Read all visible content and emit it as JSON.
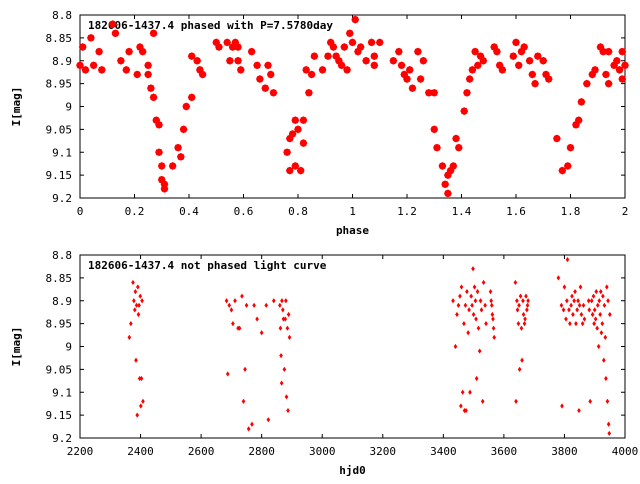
{
  "chart_data": [
    {
      "type": "scatter",
      "title": "182606-1437.4 phased with P=7.5780day",
      "xlabel": "phase",
      "ylabel": "I[mag]",
      "xlim": [
        0,
        2
      ],
      "ylim": [
        9.2,
        8.8
      ],
      "y_inverted": true,
      "grid": false,
      "marker": "star",
      "color": "#ff0000",
      "xticks": [
        "0",
        "0.2",
        "0.4",
        "0.6",
        "0.8",
        "1",
        "1.2",
        "1.4",
        "1.6",
        "1.8",
        "2"
      ],
      "yticks": [
        "8.8",
        "8.85",
        "8.9",
        "8.95",
        "9",
        "9.05",
        "9.1",
        "9.15",
        "9.2"
      ],
      "points": [
        [
          0.0,
          8.91
        ],
        [
          0.01,
          8.87
        ],
        [
          0.02,
          8.92
        ],
        [
          0.04,
          8.85
        ],
        [
          0.05,
          8.91
        ],
        [
          0.07,
          8.88
        ],
        [
          0.08,
          8.92
        ],
        [
          0.12,
          8.82
        ],
        [
          0.13,
          8.84
        ],
        [
          0.15,
          8.9
        ],
        [
          0.17,
          8.92
        ],
        [
          0.18,
          8.88
        ],
        [
          0.21,
          8.93
        ],
        [
          0.22,
          8.87
        ],
        [
          0.23,
          8.88
        ],
        [
          0.25,
          8.91
        ],
        [
          0.25,
          8.93
        ],
        [
          0.26,
          8.96
        ],
        [
          0.27,
          8.84
        ],
        [
          0.27,
          8.98
        ],
        [
          0.28,
          9.03
        ],
        [
          0.29,
          9.04
        ],
        [
          0.29,
          9.1
        ],
        [
          0.3,
          9.13
        ],
        [
          0.3,
          9.16
        ],
        [
          0.31,
          9.17
        ],
        [
          0.31,
          9.18
        ],
        [
          0.34,
          9.13
        ],
        [
          0.36,
          9.09
        ],
        [
          0.37,
          9.11
        ],
        [
          0.38,
          9.05
        ],
        [
          0.39,
          9.0
        ],
        [
          0.41,
          8.98
        ],
        [
          0.41,
          8.89
        ],
        [
          0.43,
          8.9
        ],
        [
          0.44,
          8.92
        ],
        [
          0.45,
          8.93
        ],
        [
          0.5,
          8.86
        ],
        [
          0.51,
          8.87
        ],
        [
          0.54,
          8.86
        ],
        [
          0.55,
          8.9
        ],
        [
          0.56,
          8.87
        ],
        [
          0.57,
          8.86
        ],
        [
          0.58,
          8.87
        ],
        [
          0.58,
          8.9
        ],
        [
          0.59,
          8.92
        ],
        [
          0.63,
          8.88
        ],
        [
          0.65,
          8.91
        ],
        [
          0.66,
          8.94
        ],
        [
          0.68,
          8.96
        ],
        [
          0.69,
          8.91
        ],
        [
          0.7,
          8.93
        ],
        [
          0.71,
          8.97
        ],
        [
          0.76,
          9.1
        ],
        [
          0.77,
          9.14
        ],
        [
          0.77,
          9.07
        ],
        [
          0.78,
          9.06
        ],
        [
          0.79,
          9.03
        ],
        [
          0.79,
          9.13
        ],
        [
          0.8,
          9.05
        ],
        [
          0.81,
          9.14
        ],
        [
          0.82,
          9.08
        ],
        [
          0.82,
          9.03
        ],
        [
          0.83,
          8.92
        ],
        [
          0.84,
          8.97
        ],
        [
          0.85,
          8.93
        ],
        [
          0.86,
          8.89
        ],
        [
          0.89,
          8.92
        ],
        [
          0.91,
          8.89
        ],
        [
          0.92,
          8.86
        ],
        [
          0.93,
          8.87
        ],
        [
          0.94,
          8.89
        ],
        [
          0.95,
          8.9
        ],
        [
          0.96,
          8.91
        ],
        [
          0.97,
          8.87
        ],
        [
          0.98,
          8.92
        ],
        [
          0.99,
          8.84
        ],
        [
          1.0,
          8.86
        ],
        [
          1.01,
          8.81
        ],
        [
          1.02,
          8.88
        ],
        [
          1.03,
          8.87
        ],
        [
          1.05,
          8.9
        ],
        [
          1.07,
          8.86
        ],
        [
          1.08,
          8.89
        ],
        [
          1.08,
          8.91
        ],
        [
          1.1,
          8.86
        ],
        [
          1.15,
          8.9
        ],
        [
          1.17,
          8.88
        ],
        [
          1.18,
          8.91
        ],
        [
          1.19,
          8.93
        ],
        [
          1.2,
          8.94
        ],
        [
          1.21,
          8.92
        ],
        [
          1.22,
          8.96
        ],
        [
          1.24,
          8.88
        ],
        [
          1.25,
          8.94
        ],
        [
          1.26,
          8.9
        ],
        [
          1.28,
          8.97
        ],
        [
          1.3,
          8.97
        ],
        [
          1.3,
          9.05
        ],
        [
          1.31,
          9.09
        ],
        [
          1.33,
          9.13
        ],
        [
          1.34,
          9.17
        ],
        [
          1.35,
          9.15
        ],
        [
          1.35,
          9.19
        ],
        [
          1.36,
          9.14
        ],
        [
          1.37,
          9.13
        ],
        [
          1.38,
          9.07
        ],
        [
          1.39,
          9.09
        ],
        [
          1.41,
          9.01
        ],
        [
          1.42,
          8.97
        ],
        [
          1.43,
          8.94
        ],
        [
          1.44,
          8.92
        ],
        [
          1.45,
          8.88
        ],
        [
          1.46,
          8.91
        ],
        [
          1.47,
          8.89
        ],
        [
          1.48,
          8.9
        ],
        [
          1.52,
          8.87
        ],
        [
          1.53,
          8.88
        ],
        [
          1.54,
          8.91
        ],
        [
          1.55,
          8.92
        ],
        [
          1.59,
          8.89
        ],
        [
          1.6,
          8.86
        ],
        [
          1.61,
          8.91
        ],
        [
          1.62,
          8.88
        ],
        [
          1.63,
          8.87
        ],
        [
          1.65,
          8.9
        ],
        [
          1.66,
          8.93
        ],
        [
          1.67,
          8.95
        ],
        [
          1.68,
          8.89
        ],
        [
          1.7,
          8.9
        ],
        [
          1.71,
          8.93
        ],
        [
          1.72,
          8.94
        ],
        [
          1.75,
          9.07
        ],
        [
          1.77,
          9.14
        ],
        [
          1.79,
          9.13
        ],
        [
          1.8,
          9.09
        ],
        [
          1.82,
          9.04
        ],
        [
          1.83,
          9.03
        ],
        [
          1.84,
          8.99
        ],
        [
          1.86,
          8.95
        ],
        [
          1.88,
          8.93
        ],
        [
          1.89,
          8.92
        ],
        [
          1.91,
          8.87
        ],
        [
          1.92,
          8.88
        ],
        [
          1.93,
          8.93
        ],
        [
          1.94,
          8.95
        ],
        [
          1.94,
          8.88
        ],
        [
          1.96,
          8.91
        ],
        [
          1.97,
          8.9
        ],
        [
          1.98,
          8.92
        ],
        [
          1.99,
          8.88
        ],
        [
          1.99,
          8.94
        ],
        [
          2.0,
          8.91
        ]
      ]
    },
    {
      "type": "scatter",
      "title": "182606-1437.4 not phased light curve",
      "xlabel": "hjd0",
      "ylabel": "I[mag]",
      "xlim": [
        2200,
        4000
      ],
      "ylim": [
        9.2,
        8.8
      ],
      "y_inverted": true,
      "grid": false,
      "marker": "diamond",
      "color": "#ff0000",
      "xticks": [
        "2200",
        "2400",
        "2600",
        "2800",
        "3000",
        "3200",
        "3400",
        "3600",
        "3800",
        "4000"
      ],
      "yticks": [
        "8.8",
        "8.85",
        "8.9",
        "8.95",
        "9",
        "9.05",
        "9.1",
        "9.15",
        "9.2"
      ],
      "points": [
        [
          2363,
          8.98
        ],
        [
          2368,
          8.95
        ],
        [
          2375,
          8.86
        ],
        [
          2378,
          8.9
        ],
        [
          2381,
          8.92
        ],
        [
          2383,
          8.88
        ],
        [
          2385,
          9.03
        ],
        [
          2387,
          8.91
        ],
        [
          2389,
          9.15
        ],
        [
          2391,
          8.87
        ],
        [
          2393,
          8.93
        ],
        [
          2395,
          8.91
        ],
        [
          2397,
          9.07
        ],
        [
          2399,
          8.89
        ],
        [
          2401,
          9.13
        ],
        [
          2403,
          9.07
        ],
        [
          2405,
          8.9
        ],
        [
          2408,
          9.12
        ],
        [
          2684,
          8.9
        ],
        [
          2688,
          9.06
        ],
        [
          2693,
          8.91
        ],
        [
          2700,
          8.92
        ],
        [
          2705,
          8.95
        ],
        [
          2712,
          8.9
        ],
        [
          2722,
          8.96
        ],
        [
          2727,
          8.96
        ],
        [
          2735,
          8.89
        ],
        [
          2740,
          9.12
        ],
        [
          2745,
          9.05
        ],
        [
          2750,
          8.91
        ],
        [
          2757,
          9.18
        ],
        [
          2768,
          9.17
        ],
        [
          2775,
          8.91
        ],
        [
          2785,
          8.94
        ],
        [
          2800,
          8.97
        ],
        [
          2815,
          8.91
        ],
        [
          2822,
          9.16
        ],
        [
          2840,
          8.9
        ],
        [
          2860,
          8.91
        ],
        [
          2862,
          8.96
        ],
        [
          2864,
          9.02
        ],
        [
          2866,
          9.08
        ],
        [
          2867,
          8.9
        ],
        [
          2870,
          8.92
        ],
        [
          2872,
          8.94
        ],
        [
          2875,
          9.05
        ],
        [
          2878,
          8.94
        ],
        [
          2880,
          8.9
        ],
        [
          2882,
          9.11
        ],
        [
          2885,
          8.96
        ],
        [
          2887,
          9.14
        ],
        [
          2889,
          8.93
        ],
        [
          2892,
          8.98
        ],
        [
          3432,
          8.9
        ],
        [
          3440,
          9.0
        ],
        [
          3445,
          8.93
        ],
        [
          3450,
          8.91
        ],
        [
          3455,
          8.89
        ],
        [
          3458,
          9.13
        ],
        [
          3460,
          8.87
        ],
        [
          3464,
          9.1
        ],
        [
          3468,
          8.95
        ],
        [
          3470,
          9.14
        ],
        [
          3473,
          8.91
        ],
        [
          3475,
          9.14
        ],
        [
          3478,
          8.88
        ],
        [
          3482,
          8.97
        ],
        [
          3485,
          8.92
        ],
        [
          3488,
          9.1
        ],
        [
          3492,
          8.89
        ],
        [
          3495,
          8.91
        ],
        [
          3498,
          8.83
        ],
        [
          3500,
          8.93
        ],
        [
          3503,
          8.87
        ],
        [
          3506,
          8.9
        ],
        [
          3508,
          8.94
        ],
        [
          3510,
          9.07
        ],
        [
          3513,
          8.88
        ],
        [
          3516,
          8.96
        ],
        [
          3520,
          9.01
        ],
        [
          3523,
          8.9
        ],
        [
          3526,
          8.92
        ],
        [
          3530,
          9.12
        ],
        [
          3533,
          8.86
        ],
        [
          3538,
          8.91
        ],
        [
          3541,
          8.95
        ],
        [
          3556,
          8.88
        ],
        [
          3558,
          8.9
        ],
        [
          3560,
          8.91
        ],
        [
          3562,
          8.93
        ],
        [
          3564,
          8.94
        ],
        [
          3566,
          8.96
        ],
        [
          3568,
          8.98
        ],
        [
          3638,
          8.86
        ],
        [
          3640,
          9.12
        ],
        [
          3643,
          8.9
        ],
        [
          3645,
          8.92
        ],
        [
          3648,
          8.95
        ],
        [
          3650,
          8.91
        ],
        [
          3652,
          9.05
        ],
        [
          3655,
          8.89
        ],
        [
          3658,
          8.96
        ],
        [
          3660,
          9.03
        ],
        [
          3663,
          8.9
        ],
        [
          3665,
          8.93
        ],
        [
          3668,
          8.95
        ],
        [
          3670,
          8.94
        ],
        [
          3673,
          8.89
        ],
        [
          3676,
          8.92
        ],
        [
          3678,
          8.91
        ],
        [
          3680,
          8.9
        ],
        [
          3780,
          8.85
        ],
        [
          3790,
          8.91
        ],
        [
          3792,
          9.13
        ],
        [
          3797,
          8.92
        ],
        [
          3800,
          8.87
        ],
        [
          3805,
          8.94
        ],
        [
          3808,
          8.9
        ],
        [
          3810,
          8.81
        ],
        [
          3815,
          8.92
        ],
        [
          3818,
          8.95
        ],
        [
          3822,
          8.91
        ],
        [
          3825,
          8.89
        ],
        [
          3828,
          8.93
        ],
        [
          3832,
          8.9
        ],
        [
          3835,
          8.88
        ],
        [
          3838,
          8.95
        ],
        [
          3842,
          8.92
        ],
        [
          3845,
          8.9
        ],
        [
          3848,
          9.14
        ],
        [
          3850,
          8.91
        ],
        [
          3853,
          8.87
        ],
        [
          3856,
          8.93
        ],
        [
          3860,
          8.95
        ],
        [
          3863,
          8.91
        ],
        [
          3866,
          8.94
        ],
        [
          3880,
          8.9
        ],
        [
          3882,
          8.92
        ],
        [
          3885,
          9.12
        ],
        [
          3890,
          8.9
        ],
        [
          3893,
          8.93
        ],
        [
          3896,
          8.89
        ],
        [
          3898,
          8.95
        ],
        [
          3900,
          8.92
        ],
        [
          3903,
          8.94
        ],
        [
          3905,
          8.88
        ],
        [
          3908,
          8.96
        ],
        [
          3910,
          8.91
        ],
        [
          3913,
          9.0
        ],
        [
          3915,
          8.9
        ],
        [
          3918,
          8.93
        ],
        [
          3920,
          8.88
        ],
        [
          3922,
          8.97
        ],
        [
          3925,
          8.95
        ],
        [
          3927,
          8.89
        ],
        [
          3930,
          9.03
        ],
        [
          3932,
          8.91
        ],
        [
          3935,
          8.98
        ],
        [
          3937,
          9.07
        ],
        [
          3940,
          8.87
        ],
        [
          3942,
          9.12
        ],
        [
          3944,
          8.9
        ],
        [
          3946,
          9.17
        ],
        [
          3948,
          9.19
        ],
        [
          3950,
          8.93
        ]
      ]
    }
  ]
}
